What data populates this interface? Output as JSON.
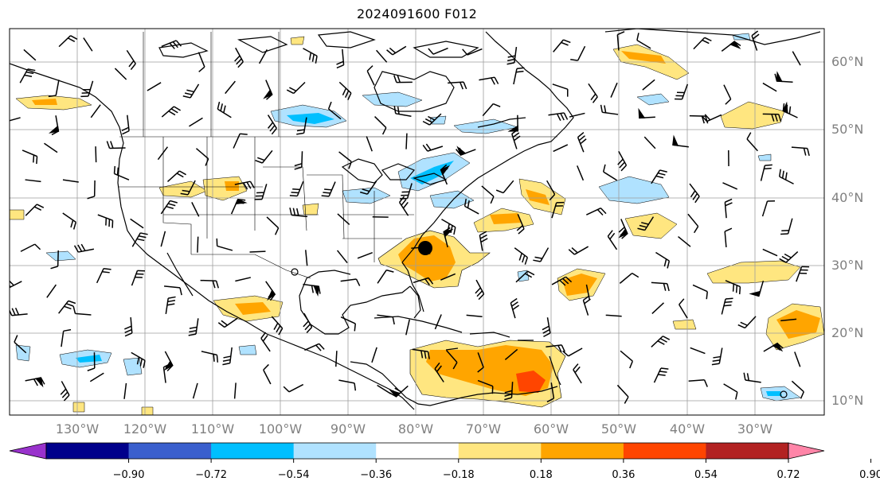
{
  "title": "2024091600 F012",
  "map": {
    "lat_labels": [
      "60°N",
      "50°N",
      "40°N",
      "30°N",
      "20°N",
      "10°N"
    ],
    "lon_labels": [
      "130°W",
      "120°W",
      "110°W",
      "100°W",
      "90°W",
      "80°W",
      "70°W",
      "60°W",
      "50°W",
      "40°W",
      "30°W"
    ],
    "land_line_color": "#000000",
    "grid_color": "#9e9e9e",
    "storm_marker": "filled black circle near 32°N 78°W"
  },
  "colorbar": {
    "levels": [
      "−0.90",
      "−0.72",
      "−0.54",
      "−0.36",
      "−0.18",
      "0.18",
      "0.36",
      "0.54",
      "0.72",
      "0.90"
    ],
    "colors": [
      "#9932cc",
      "#00008b",
      "#3a5fcd",
      "#00bfff",
      "#b0e2ff",
      "#ffffff",
      "#ffe680",
      "#ffa500",
      "#ff4500",
      "#b22222",
      "#ff85a8"
    ]
  }
}
